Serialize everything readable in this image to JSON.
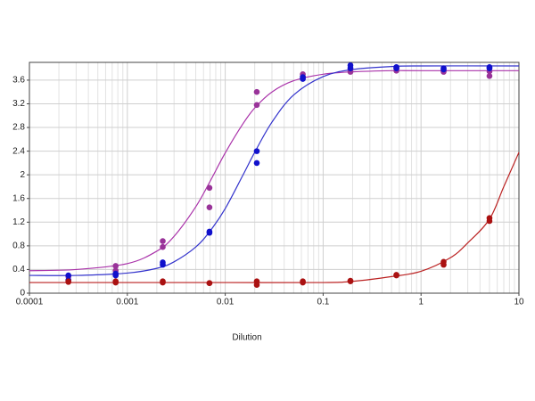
{
  "chart_data": {
    "type": "scatter",
    "xlabel": "Dilution",
    "xscale": "log",
    "xlim": [
      0.0001,
      10
    ],
    "xticks": [
      0.0001,
      0.001,
      0.01,
      0.1,
      1,
      10
    ],
    "ylim": [
      0,
      3.9
    ],
    "yticks": [
      0,
      0.4,
      0.8,
      1.2,
      1.6,
      2,
      2.4,
      2.8,
      3.2,
      3.6
    ],
    "grid": true,
    "series": [
      {
        "color": "#993399",
        "x": [
          0.00025,
          0.00025,
          0.00076,
          0.00076,
          0.0023,
          0.0023,
          0.0069,
          0.0069,
          0.021,
          0.021,
          0.062,
          0.062,
          0.19,
          0.19,
          0.56,
          0.56,
          1.7,
          1.7,
          5,
          5
        ],
        "values": [
          0.28,
          0.22,
          0.46,
          0.38,
          0.88,
          0.78,
          1.78,
          1.45,
          3.4,
          3.18,
          3.7,
          3.66,
          3.78,
          3.74,
          3.8,
          3.76,
          3.76,
          3.74,
          3.75,
          3.67
        ]
      },
      {
        "color": "#1111cc",
        "x": [
          0.00025,
          0.00025,
          0.00076,
          0.00076,
          0.0023,
          0.0023,
          0.0069,
          0.0069,
          0.021,
          0.021,
          0.062,
          0.062,
          0.19,
          0.19,
          0.56,
          0.56,
          1.7,
          1.7,
          5,
          5
        ],
        "values": [
          0.3,
          0.22,
          0.33,
          0.3,
          0.52,
          0.48,
          1.04,
          1.02,
          2.4,
          2.2,
          3.65,
          3.62,
          3.85,
          3.8,
          3.82,
          3.8,
          3.8,
          3.78,
          3.82,
          3.8
        ]
      },
      {
        "color": "#aa1111",
        "x": [
          0.00025,
          0.00025,
          0.00076,
          0.00076,
          0.0023,
          0.0023,
          0.0069,
          0.0069,
          0.021,
          0.021,
          0.062,
          0.062,
          0.19,
          0.19,
          0.56,
          0.56,
          1.7,
          1.7,
          5,
          5
        ],
        "values": [
          0.19,
          0.2,
          0.2,
          0.18,
          0.2,
          0.18,
          0.17,
          0.17,
          0.2,
          0.14,
          0.2,
          0.18,
          0.21,
          0.2,
          0.31,
          0.3,
          0.53,
          0.48,
          1.27,
          1.22
        ]
      }
    ],
    "fits": [
      {
        "color": "#aa33aa",
        "x": [
          0.0001,
          0.0003,
          0.001,
          0.002,
          0.003,
          0.005,
          0.007,
          0.01,
          0.015,
          0.02,
          0.03,
          0.05,
          0.1,
          0.2,
          0.5,
          1,
          10
        ],
        "values": [
          0.38,
          0.4,
          0.5,
          0.71,
          0.96,
          1.46,
          1.89,
          2.37,
          2.85,
          3.13,
          3.4,
          3.59,
          3.7,
          3.74,
          3.76,
          3.76,
          3.76
        ]
      },
      {
        "color": "#3333cc",
        "x": [
          0.0001,
          0.0003,
          0.001,
          0.002,
          0.003,
          0.005,
          0.007,
          0.01,
          0.015,
          0.02,
          0.03,
          0.05,
          0.1,
          0.2,
          0.5,
          1,
          10
        ],
        "values": [
          0.3,
          0.3,
          0.34,
          0.42,
          0.53,
          0.78,
          1.05,
          1.43,
          1.98,
          2.38,
          2.89,
          3.35,
          3.66,
          3.78,
          3.83,
          3.84,
          3.84
        ]
      },
      {
        "color": "#bb2222",
        "x": [
          0.0001,
          0.001,
          0.01,
          0.1,
          0.2,
          0.5,
          1,
          2,
          3,
          5,
          7,
          10
        ],
        "values": [
          0.18,
          0.18,
          0.18,
          0.18,
          0.2,
          0.28,
          0.37,
          0.6,
          0.85,
          1.25,
          1.8,
          2.38
        ]
      }
    ]
  }
}
